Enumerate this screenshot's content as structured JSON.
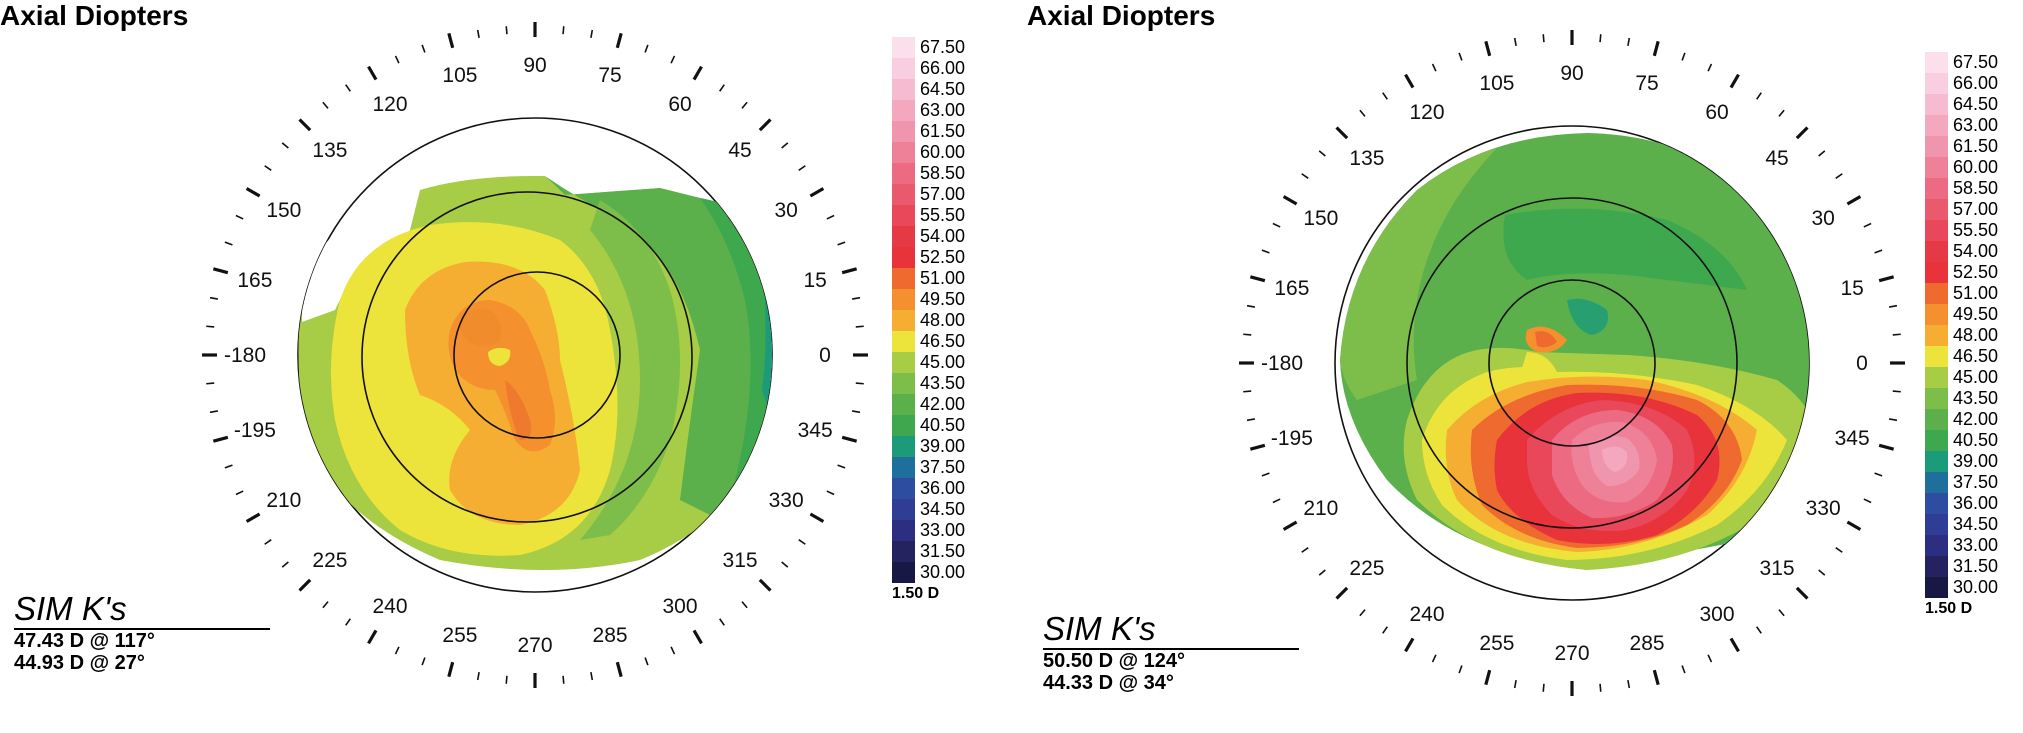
{
  "legend_steps": [
    {
      "value": "67.50",
      "color": "#fbe0ec"
    },
    {
      "value": "66.00",
      "color": "#f9cee0"
    },
    {
      "value": "64.50",
      "color": "#f6bbd0"
    },
    {
      "value": "63.00",
      "color": "#f3a8c0"
    },
    {
      "value": "61.50",
      "color": "#f095ae"
    },
    {
      "value": "60.00",
      "color": "#ee8098"
    },
    {
      "value": "58.50",
      "color": "#ec6b82"
    },
    {
      "value": "57.00",
      "color": "#ea5a6e"
    },
    {
      "value": "55.50",
      "color": "#e8485a"
    },
    {
      "value": "54.00",
      "color": "#e63946"
    },
    {
      "value": "52.50",
      "color": "#e8333a"
    },
    {
      "value": "51.00",
      "color": "#ef6a2e"
    },
    {
      "value": "49.50",
      "color": "#f4912e"
    },
    {
      "value": "48.00",
      "color": "#f6ae32"
    },
    {
      "value": "46.50",
      "color": "#ede43b"
    },
    {
      "value": "45.00",
      "color": "#a7cc45"
    },
    {
      "value": "43.50",
      "color": "#7dbd49"
    },
    {
      "value": "42.00",
      "color": "#5bb04b"
    },
    {
      "value": "40.50",
      "color": "#3ea84f"
    },
    {
      "value": "39.00",
      "color": "#1c9b7a"
    },
    {
      "value": "37.50",
      "color": "#1f6f9c"
    },
    {
      "value": "36.00",
      "color": "#2c4da0"
    },
    {
      "value": "34.50",
      "color": "#2f3d95"
    },
    {
      "value": "33.00",
      "color": "#2c2e82"
    },
    {
      "value": "31.50",
      "color": "#24225f"
    },
    {
      "value": "30.00",
      "color": "#171844"
    }
  ],
  "legend_step_label": "1.50 D",
  "degree_labels": [
    "0",
    "15",
    "30",
    "45",
    "60",
    "75",
    "90",
    "105",
    "120",
    "135",
    "150",
    "165",
    "-180",
    "-195",
    "210",
    "225",
    "240",
    "255",
    "270",
    "285",
    "300",
    "315",
    "330",
    "345"
  ],
  "maps": [
    {
      "title": "Axial Diopters",
      "simk": {
        "heading": "SIM K's",
        "k1": "47.43 D @ 117°",
        "k2": "44.93 D @ 27°"
      }
    },
    {
      "title": "Axial Diopters",
      "simk": {
        "heading": "SIM K's",
        "k1": "50.50 D @ 124°",
        "k2": "44.33 D @ 34°"
      }
    }
  ]
}
